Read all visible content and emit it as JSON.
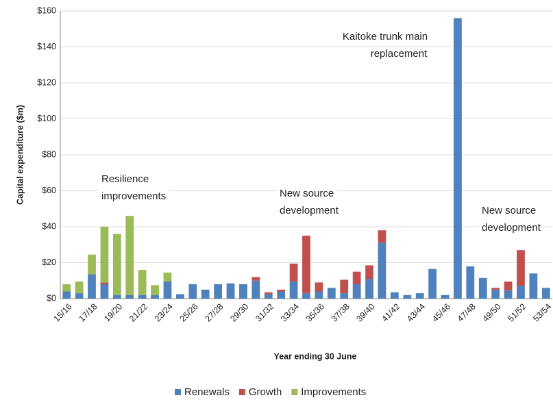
{
  "chart_data": {
    "type": "stacked_bar",
    "y_label": "Capital expenditure ($m)",
    "x_label": "Year ending 30 June",
    "categories": [
      "15/16",
      null,
      "17/18",
      null,
      "19/20",
      null,
      "21/22",
      null,
      "23/24",
      null,
      "25/26",
      null,
      "27/28",
      null,
      "29/30",
      null,
      "31/32",
      null,
      "33/34",
      null,
      "35/36",
      null,
      "37/38",
      null,
      "39/40",
      null,
      "41/42",
      null,
      "43/44",
      null,
      "45/46",
      null,
      "47/48",
      null,
      "49/50",
      null,
      "51/52",
      null,
      "53/54"
    ],
    "series": [
      {
        "name": "Renewals",
        "color": "#4f81bd",
        "values": [
          4,
          3,
          13.5,
          8,
          2,
          2,
          2,
          2,
          9.5,
          2.5,
          8,
          5,
          8,
          8.5,
          8,
          10,
          2.5,
          4,
          9.5,
          3,
          4,
          6,
          3,
          8,
          11,
          31,
          3.5,
          2,
          3,
          16.5,
          2,
          156,
          18,
          11.5,
          5,
          4.5,
          7,
          14,
          6
        ]
      },
      {
        "name": "Growth",
        "color": "#c0504d",
        "values": [
          0,
          0,
          0,
          1,
          0,
          0,
          0,
          0,
          0,
          0,
          0,
          0,
          0,
          0,
          0,
          2,
          1,
          1,
          10,
          32,
          5,
          0,
          7.5,
          7,
          7.5,
          7,
          0,
          0,
          0,
          0,
          0,
          0,
          0,
          0,
          1,
          5,
          20,
          0,
          0
        ]
      },
      {
        "name": "Improvements",
        "color": "#9bbb59",
        "values": [
          4,
          6.5,
          11,
          31,
          34,
          44,
          14,
          5.5,
          5,
          0,
          0,
          0,
          0,
          0,
          0,
          0,
          0,
          0,
          0,
          0,
          0,
          0,
          0,
          0,
          0,
          0,
          0,
          0,
          0,
          0,
          0,
          0,
          0,
          0,
          0,
          0,
          0,
          0,
          0
        ]
      }
    ],
    "ylim": [
      0,
      160
    ],
    "yticks": [
      {
        "value": 0,
        "label": "$0"
      },
      {
        "value": 20,
        "label": "$20"
      },
      {
        "value": 40,
        "label": "$40"
      },
      {
        "value": 60,
        "label": "$60"
      },
      {
        "value": 80,
        "label": "$80"
      },
      {
        "value": 100,
        "label": "$100"
      },
      {
        "value": 120,
        "label": "$120"
      },
      {
        "value": 140,
        "label": "$140"
      },
      {
        "value": 160,
        "label": "$160"
      }
    ],
    "grid": true,
    "legend": "bottom",
    "annotations": [
      [
        "Resilience",
        "improvements"
      ],
      [
        "New source",
        "development"
      ],
      [
        "Kaitoke trunk main",
        "replacement"
      ],
      [
        "New source",
        "development"
      ]
    ]
  }
}
